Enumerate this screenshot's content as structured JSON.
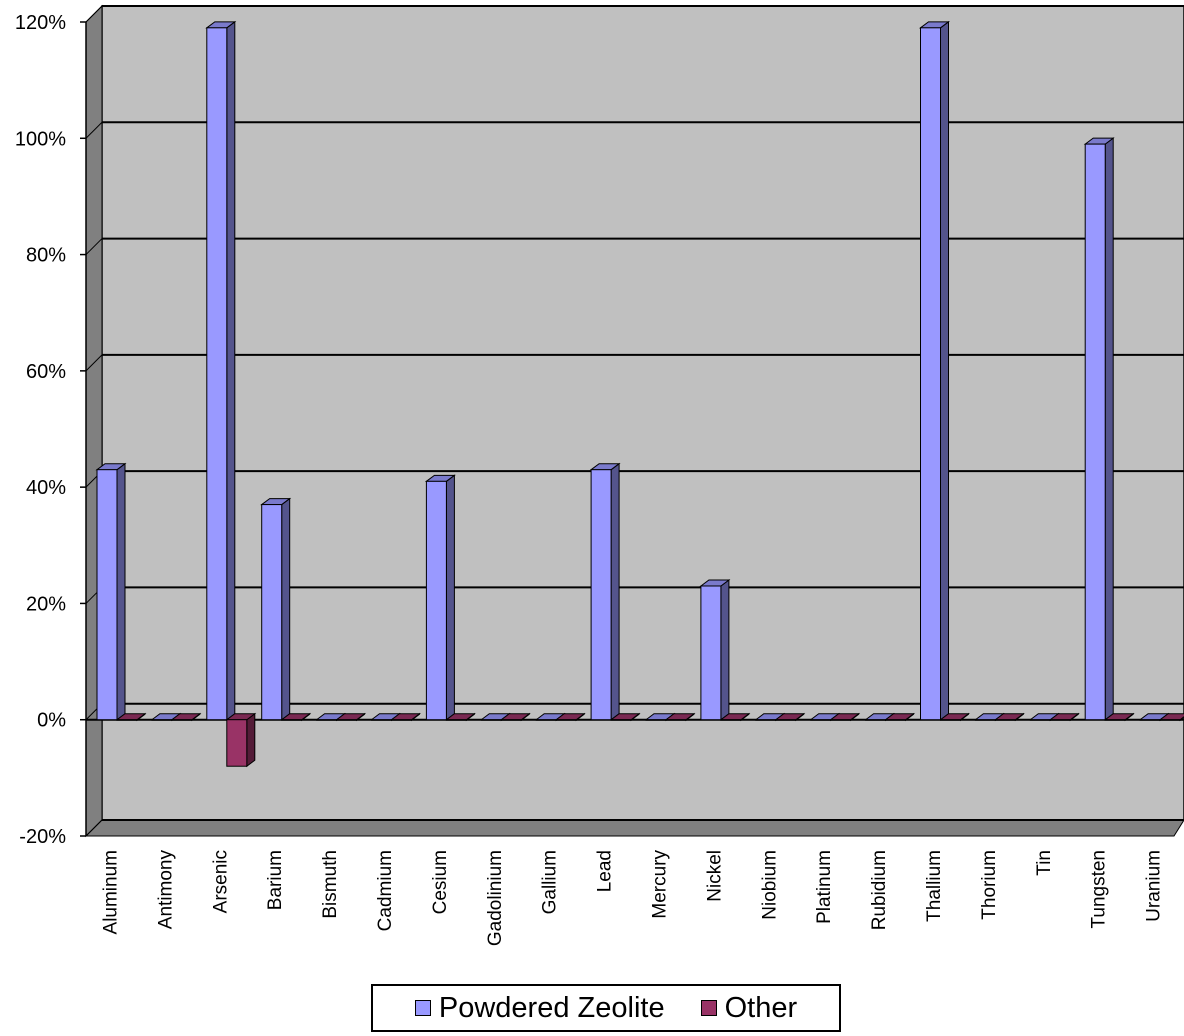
{
  "chart_data": {
    "type": "bar",
    "categories": [
      "Aluminum",
      "Antimony",
      "Arsenic",
      "Barium",
      "Bismuth",
      "Cadmium",
      "Cesium",
      "Gadolinium",
      "Gallium",
      "Lead",
      "Mercury",
      "Nickel",
      "Niobium",
      "Platinum",
      "Rubidium",
      "Thallium",
      "Thorium",
      "Tin",
      "Tungsten",
      "Uranium"
    ],
    "series": [
      {
        "name": "Powdered Zeolite",
        "color": "#9999ff",
        "values": [
          43,
          0,
          119,
          37,
          0,
          0,
          41,
          0,
          0,
          43,
          0,
          23,
          0,
          0,
          0,
          119,
          0,
          0,
          99,
          0
        ]
      },
      {
        "name": "Other",
        "color": "#993366",
        "values": [
          0,
          0,
          -8,
          0,
          0,
          0,
          0,
          0,
          0,
          0,
          0,
          0,
          0,
          0,
          0,
          0,
          0,
          0,
          0,
          0
        ]
      }
    ],
    "y_ticks": [
      "120%",
      "100%",
      "80%",
      "60%",
      "40%",
      "20%",
      "0%",
      "-20%"
    ],
    "ylim": [
      -20,
      120
    ],
    "grid": true,
    "legend_position": "bottom",
    "plot_background": "#c0c0c0",
    "wall_color": "#808080"
  }
}
